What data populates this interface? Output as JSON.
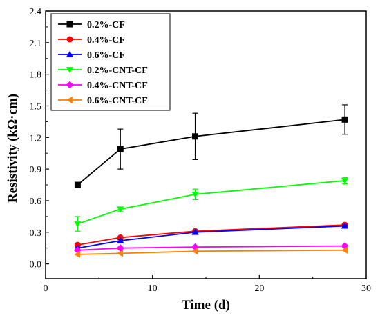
{
  "chart_data": {
    "type": "line",
    "title": "",
    "xlabel": "Time (d)",
    "ylabel": "Resistivity (kΩ·cm)",
    "xlim": [
      0,
      30
    ],
    "ylim": [
      -0.14,
      2.4
    ],
    "xticks": [
      0,
      10,
      20,
      30
    ],
    "yticks": [
      0.0,
      0.3,
      0.6,
      0.9,
      1.2,
      1.5,
      1.8,
      2.1,
      2.4
    ],
    "ytick_labels": [
      "0.0",
      "0.3",
      "0.6",
      "0.9",
      "1.2",
      "1.5",
      "1.8",
      "2.1",
      "2.4"
    ],
    "grid": false,
    "legend_position": "top-left",
    "x": [
      3,
      7,
      14,
      28
    ],
    "series": [
      {
        "name": "0.2%-CF",
        "color": "#000000",
        "marker": "square",
        "values": [
          0.75,
          1.09,
          1.21,
          1.37
        ],
        "errors": [
          0.02,
          0.19,
          0.22,
          0.14
        ]
      },
      {
        "name": "0.4%-CF",
        "color": "#ff0000",
        "marker": "circle",
        "values": [
          0.18,
          0.25,
          0.31,
          0.37
        ],
        "errors": [
          0.01,
          0.01,
          0.01,
          0.01
        ]
      },
      {
        "name": "0.6%-CF",
        "color": "#0000ff",
        "marker": "triangle-up",
        "values": [
          0.15,
          0.22,
          0.3,
          0.36
        ],
        "errors": [
          0.01,
          0.01,
          0.01,
          0.01
        ]
      },
      {
        "name": "0.2%-CNT-CF",
        "color": "#00ff00",
        "marker": "triangle-down",
        "values": [
          0.38,
          0.52,
          0.66,
          0.79
        ],
        "errors": [
          0.07,
          0.02,
          0.05,
          0.03
        ]
      },
      {
        "name": "0.4%-CNT-CF",
        "color": "#ff00ff",
        "marker": "diamond",
        "values": [
          0.13,
          0.15,
          0.16,
          0.17
        ],
        "errors": [
          0.01,
          0.01,
          0.01,
          0.01
        ]
      },
      {
        "name": "0.6%-CNT-CF",
        "color": "#ff8000",
        "marker": "triangle-left",
        "values": [
          0.09,
          0.1,
          0.12,
          0.13
        ],
        "errors": [
          0.005,
          0.005,
          0.005,
          0.005
        ]
      }
    ]
  }
}
